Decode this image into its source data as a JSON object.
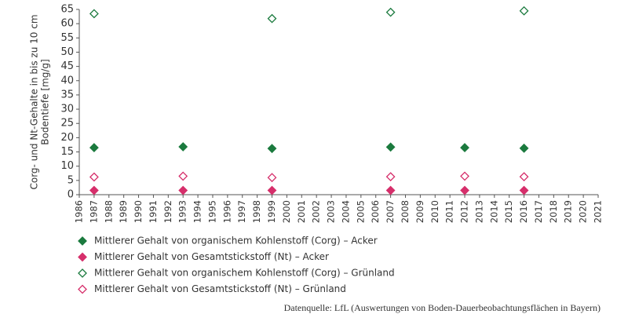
{
  "chart_data": {
    "type": "scatter",
    "ylabel": [
      "Corg- und Nt-Gehalte in bis zu 10 cm",
      "Bodentiefe [mg/g]"
    ],
    "xlim": [
      1986,
      2021
    ],
    "xticks": [
      1986,
      1987,
      1988,
      1989,
      1990,
      1991,
      1992,
      1993,
      1994,
      1995,
      1996,
      1997,
      1998,
      1999,
      2000,
      2001,
      2002,
      2003,
      2004,
      2005,
      2006,
      2007,
      2008,
      2009,
      2010,
      2011,
      2012,
      2013,
      2014,
      2015,
      2016,
      2017,
      2018,
      2019,
      2020,
      2021
    ],
    "ylim": [
      0,
      65
    ],
    "yticks": [
      0,
      5,
      10,
      15,
      20,
      25,
      30,
      35,
      40,
      45,
      50,
      55,
      60,
      65
    ],
    "series": [
      {
        "name": "Mittlerer Gehalt von organischem Kohlenstoff (Corg) – Acker",
        "color": "#1b7a3e",
        "filled": true,
        "x": [
          1987,
          1993,
          1999,
          2007,
          2012,
          2016
        ],
        "values": [
          16.5,
          16.8,
          16.2,
          16.7,
          16.5,
          16.3
        ]
      },
      {
        "name": "Mittlerer Gehalt von Gesamtstickstoff (Nt) – Acker",
        "color": "#d62f6b",
        "filled": true,
        "x": [
          1987,
          1993,
          1999,
          2007,
          2012,
          2016
        ],
        "values": [
          1.5,
          1.5,
          1.5,
          1.5,
          1.5,
          1.5
        ]
      },
      {
        "name": "Mittlerer Gehalt von organischem Kohlenstoff (Corg) – Grünland",
        "color": "#1b7a3e",
        "filled": false,
        "x": [
          1987,
          1999,
          2007,
          2016
        ],
        "values": [
          63.5,
          61.8,
          64,
          64.5
        ]
      },
      {
        "name": "Mittlerer Gehalt von Gesamtstickstoff (Nt) – Grünland",
        "color": "#d62f6b",
        "filled": false,
        "x": [
          1987,
          1993,
          1999,
          2007,
          2012,
          2016
        ],
        "values": [
          6.2,
          6.5,
          6.0,
          6.3,
          6.5,
          6.3
        ]
      }
    ],
    "source": "Datenquelle: LfL (Auswertungen von Boden-Dauerbeobachtungsflächen in Bayern)"
  }
}
